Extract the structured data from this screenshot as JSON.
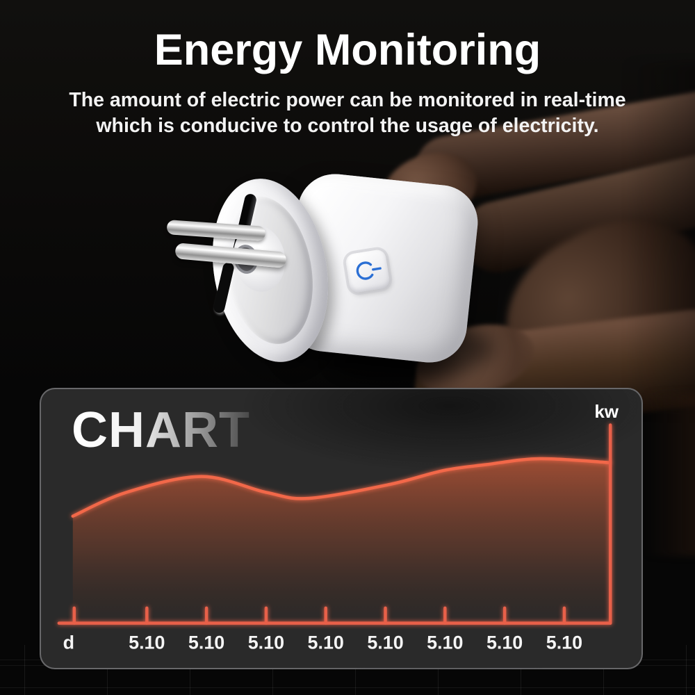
{
  "header": {
    "title": "Energy Monitoring",
    "subtitle_line1": "The amount of electric power can be monitored in real-time",
    "subtitle_line2": "which is conducive to control the usage of electricity."
  },
  "product": {
    "name": "smart plug held between fingers",
    "power_button_icon": "power-icon",
    "power_button_color": "#2b6fd4"
  },
  "chart_panel": {
    "title": "CHART",
    "unit_label": "kw"
  },
  "chart_data": {
    "type": "area",
    "title": "CHART",
    "ylabel": "kw",
    "x_tick_labels": [
      "d",
      "5.10",
      "5.10",
      "5.10",
      "5.10",
      "5.10",
      "5.10",
      "5.10",
      "5.10"
    ],
    "y_axis_numeric_labels": false,
    "ylim_relative": [
      0,
      100
    ],
    "grid": false,
    "legend_position": "none",
    "series": [
      {
        "name": "power-usage-kw",
        "points": [
          {
            "x": 0.0,
            "v": 54
          },
          {
            "x": 0.1,
            "v": 66
          },
          {
            "x": 0.24,
            "v": 74
          },
          {
            "x": 0.36,
            "v": 66
          },
          {
            "x": 0.44,
            "v": 63
          },
          {
            "x": 0.59,
            "v": 70
          },
          {
            "x": 0.69,
            "v": 77
          },
          {
            "x": 0.77,
            "v": 80
          },
          {
            "x": 0.87,
            "v": 83
          },
          {
            "x": 1.0,
            "v": 81
          }
        ]
      }
    ],
    "colors": {
      "line": "#f2684a",
      "axis": "#e8604a",
      "fill_top": "rgba(228,98,58,0.62)",
      "fill_mid": "rgba(160,75,45,0.34)",
      "fill_bottom": "rgba(80,40,25,0.05)"
    }
  }
}
